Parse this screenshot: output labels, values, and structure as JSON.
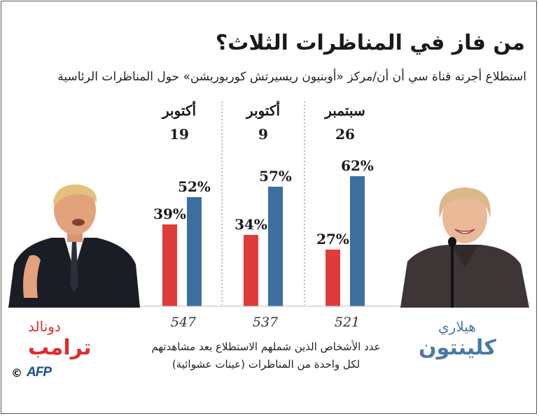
{
  "title": "من فاز في المناظرات الثلاث؟",
  "subtitle": "استطلاع أجرته قناة سي أن أن/مركز «أوبنيون ريسيرتش كوربوريشن» حول المناظرات الرئاسية",
  "colors": {
    "trump": "#e03b3b",
    "clinton": "#3a6fa0",
    "clinton_name": "#4a79a6",
    "trump_name": "#e02c2c"
  },
  "chart_data": {
    "type": "bar",
    "categories": [
      "19 أكتوبر",
      "9 أكتوبر",
      "26 سبتمبر"
    ],
    "series": [
      {
        "name": "ترامب",
        "values": [
          39,
          34,
          27
        ]
      },
      {
        "name": "كلينتون",
        "values": [
          52,
          57,
          62
        ]
      }
    ],
    "unit": "%",
    "sample_sizes": [
      "547",
      "537",
      "521"
    ],
    "ylim": [
      0,
      70
    ],
    "grid": false
  },
  "polls": [
    {
      "month": "أكتوبر",
      "day": "19",
      "trump_label": "39%",
      "clinton_label": "52%",
      "sample": "547"
    },
    {
      "month": "أكتوبر",
      "day": "9",
      "trump_label": "34%",
      "clinton_label": "57%",
      "sample": "537"
    },
    {
      "month": "سبتمبر",
      "day": "26",
      "trump_label": "27%",
      "clinton_label": "62%",
      "sample": "521"
    }
  ],
  "note_line1": "عدد الأشخاص الذين شملهم الاستطلاع بعد مشاهدتهم",
  "note_line2": "لكل واحدة من المناظرات (عينات عشوائية)",
  "trump": {
    "first_name": "دونالد",
    "last_name": "ترامب"
  },
  "clinton": {
    "first_name": "هيلاري",
    "last_name": "كلينتون"
  },
  "credit": {
    "copyright": "©",
    "agency": "AFP"
  }
}
